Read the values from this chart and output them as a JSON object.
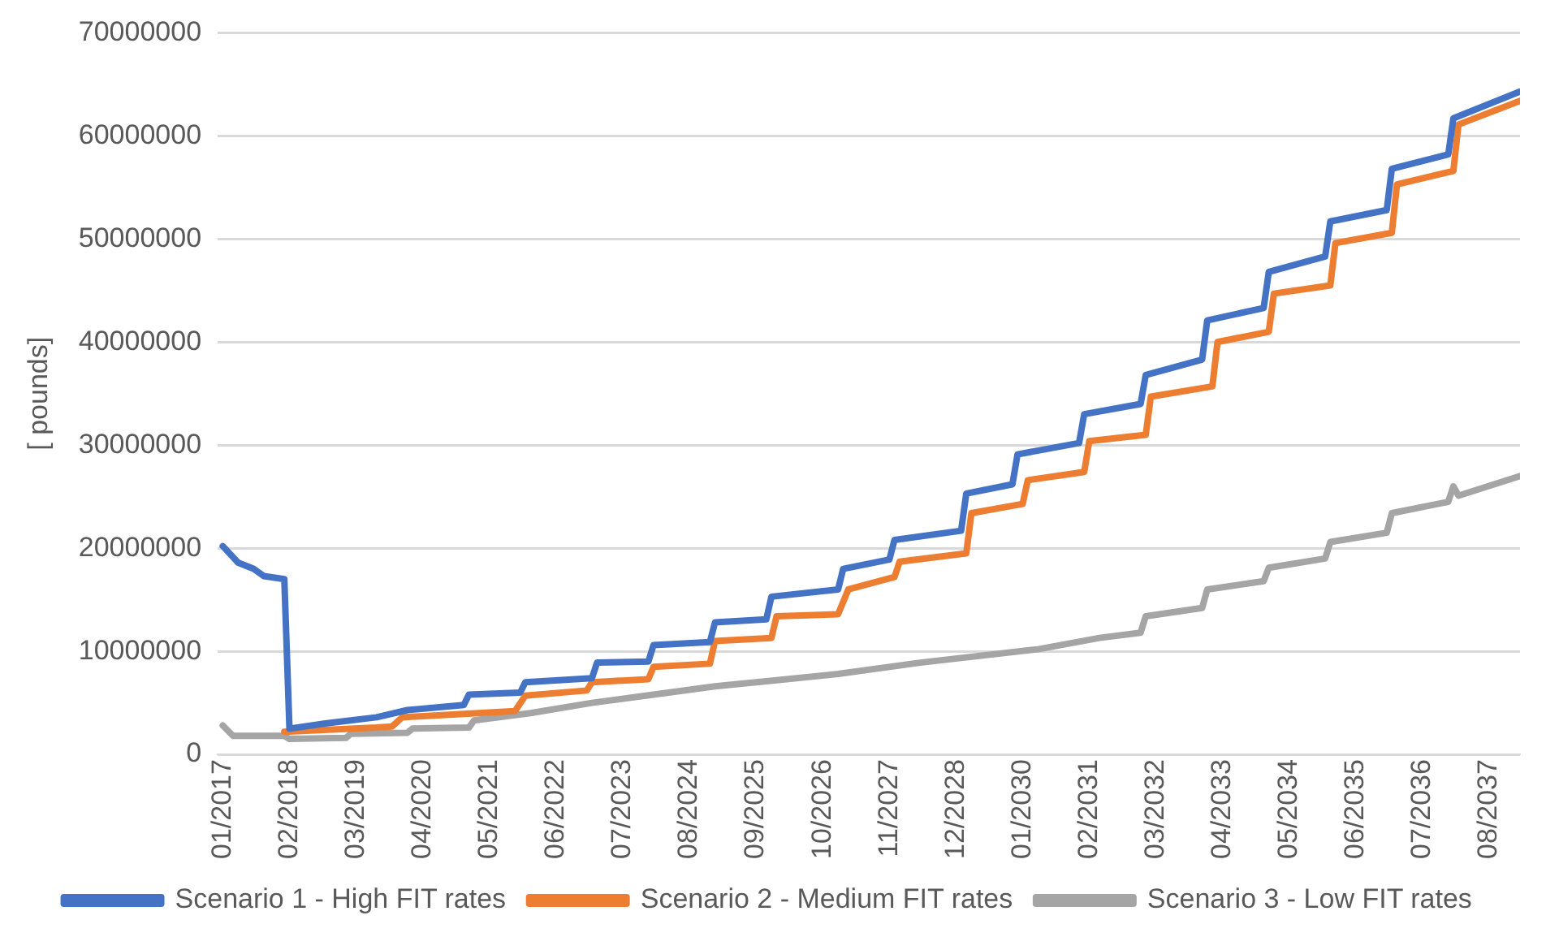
{
  "chart_data": {
    "type": "line",
    "ylabel": "[ pounds]",
    "legend": "bottom",
    "grid": "y",
    "marker": "none",
    "line_style": "solid",
    "xlim": [
      "2016-12",
      "2038-02"
    ],
    "xticks": [
      {
        "value": "2017-01",
        "label": "01/2017"
      },
      {
        "value": "2018-02",
        "label": "02/2018"
      },
      {
        "value": "2019-03",
        "label": "03/2019"
      },
      {
        "value": "2020-04",
        "label": "04/2020"
      },
      {
        "value": "2021-05",
        "label": "05/2021"
      },
      {
        "value": "2022-06",
        "label": "06/2022"
      },
      {
        "value": "2023-07",
        "label": "07/2023"
      },
      {
        "value": "2024-08",
        "label": "08/2024"
      },
      {
        "value": "2025-09",
        "label": "09/2025"
      },
      {
        "value": "2026-10",
        "label": "10/2026"
      },
      {
        "value": "2027-11",
        "label": "11/2027"
      },
      {
        "value": "2028-12",
        "label": "12/2028"
      },
      {
        "value": "2030-01",
        "label": "01/2030"
      },
      {
        "value": "2031-02",
        "label": "02/2031"
      },
      {
        "value": "2032-03",
        "label": "03/2032"
      },
      {
        "value": "2033-04",
        "label": "04/2033"
      },
      {
        "value": "2034-05",
        "label": "05/2034"
      },
      {
        "value": "2035-06",
        "label": "06/2035"
      },
      {
        "value": "2036-07",
        "label": "07/2036"
      },
      {
        "value": "2037-08",
        "label": "08/2037"
      }
    ],
    "ylim": [
      0,
      70000000
    ],
    "yticks": [
      0,
      10000000,
      20000000,
      30000000,
      40000000,
      50000000,
      60000000,
      70000000
    ],
    "series": [
      {
        "name": "Scenario 1 - High FIT rates",
        "color": "#4472c4",
        "x": [
          "2017-01",
          "2017-04",
          "2017-07",
          "2017-09",
          "2018-01",
          "2018-02",
          "2018-09",
          "2019-07",
          "2020-01",
          "2020-12",
          "2021-01",
          "2021-11",
          "2021-12",
          "2023-01",
          "2023-02",
          "2023-12",
          "2024-01",
          "2024-12",
          "2025-01",
          "2025-11",
          "2025-12",
          "2027-01",
          "2027-02",
          "2027-11",
          "2027-12",
          "2029-01",
          "2029-02",
          "2029-11",
          "2029-12",
          "2030-12",
          "2031-01",
          "2031-12",
          "2032-01",
          "2032-12",
          "2033-01",
          "2033-12",
          "2034-01",
          "2034-12",
          "2035-01",
          "2035-12",
          "2036-01",
          "2036-12",
          "2037-01",
          "2038-02"
        ],
        "values": [
          20200000,
          18600000,
          18000000,
          17300000,
          17000000,
          2500000,
          3000000,
          3600000,
          4300000,
          4800000,
          5800000,
          6000000,
          7000000,
          7400000,
          8900000,
          9000000,
          10600000,
          10900000,
          12800000,
          13100000,
          15300000,
          16000000,
          18000000,
          18900000,
          20800000,
          21700000,
          25300000,
          26200000,
          29100000,
          30200000,
          33000000,
          34000000,
          36800000,
          38300000,
          42100000,
          43300000,
          46800000,
          48300000,
          51700000,
          52800000,
          56800000,
          58200000,
          61700000,
          64300000
        ]
      },
      {
        "name": "Scenario 2 - Medium FIT rates",
        "color": "#ed7d31",
        "x": [
          "2018-01",
          "2019-07",
          "2019-10",
          "2019-12",
          "2021-10",
          "2021-12",
          "2022-12",
          "2023-01",
          "2023-12",
          "2024-01",
          "2024-12",
          "2025-01",
          "2025-12",
          "2026-01",
          "2027-01",
          "2027-03",
          "2027-12",
          "2028-01",
          "2029-02",
          "2029-03",
          "2030-01",
          "2030-02",
          "2031-01",
          "2031-02",
          "2032-01",
          "2032-02",
          "2033-02",
          "2033-03",
          "2034-01",
          "2034-02",
          "2035-01",
          "2035-02",
          "2036-01",
          "2036-02",
          "2037-01",
          "2037-02",
          "2038-02"
        ],
        "values": [
          2200000,
          2600000,
          2700000,
          3600000,
          4200000,
          5700000,
          6200000,
          7000000,
          7300000,
          8500000,
          8800000,
          11000000,
          11300000,
          13400000,
          13600000,
          16000000,
          17200000,
          18700000,
          19500000,
          23400000,
          24300000,
          26600000,
          27400000,
          30400000,
          31000000,
          34700000,
          35700000,
          40000000,
          41000000,
          44700000,
          45500000,
          49600000,
          50600000,
          55300000,
          56600000,
          61100000,
          63400000
        ]
      },
      {
        "name": "Scenario 3 - Low FIT rates",
        "color": "#a5a5a5",
        "x": [
          "2017-01",
          "2017-03",
          "2018-01",
          "2018-02",
          "2019-01",
          "2019-02",
          "2020-01",
          "2020-02",
          "2021-01",
          "2021-02",
          "2022-01",
          "2023-01",
          "2024-01",
          "2025-01",
          "2026-01",
          "2027-01",
          "2028-05",
          "2030-04",
          "2031-04",
          "2031-12",
          "2032-01",
          "2032-12",
          "2033-01",
          "2033-12",
          "2034-01",
          "2034-12",
          "2035-01",
          "2035-12",
          "2036-01",
          "2036-12",
          "2037-01",
          "2037-02",
          "2038-02"
        ],
        "values": [
          2800000,
          1800000,
          1800000,
          1500000,
          1600000,
          2000000,
          2100000,
          2500000,
          2600000,
          3300000,
          4000000,
          5000000,
          5800000,
          6600000,
          7200000,
          7800000,
          8900000,
          10200000,
          11300000,
          11800000,
          13400000,
          14200000,
          16000000,
          16800000,
          18100000,
          19000000,
          20600000,
          21500000,
          23400000,
          24500000,
          26000000,
          25100000,
          27000000
        ]
      }
    ]
  }
}
